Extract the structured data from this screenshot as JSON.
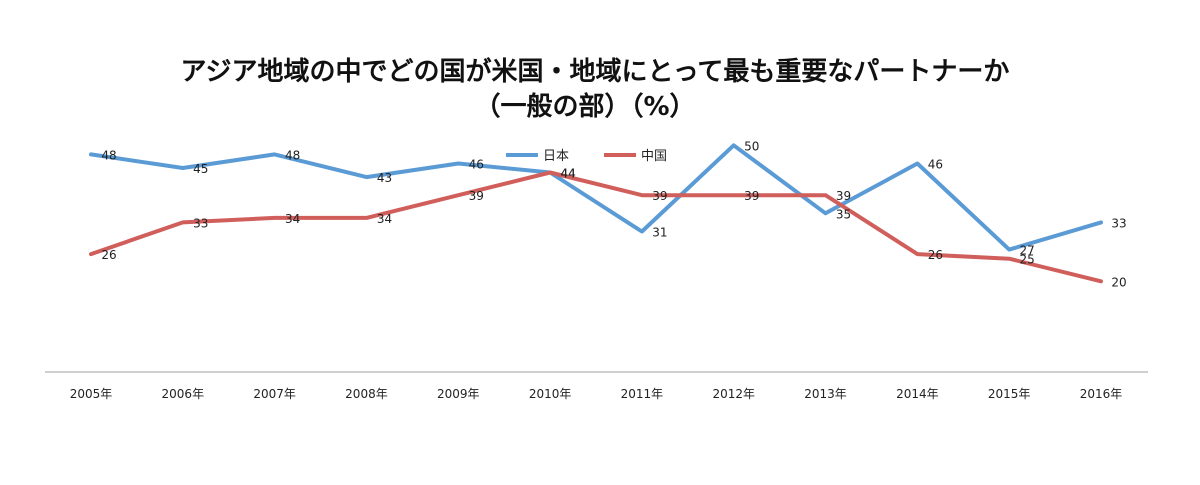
{
  "chart_data": {
    "type": "line",
    "title": "アジア地域の中でどの国が米国・地域にとって最も重要なパートナーか",
    "subtitle": "（一般の部）（%）",
    "categories": [
      "2005年",
      "2006年",
      "2007年",
      "2008年",
      "2009年",
      "2010年",
      "2011年",
      "2012年",
      "2013年",
      "2014年",
      "2015年",
      "2016年"
    ],
    "series": [
      {
        "name": "日本",
        "color": "#5b9bd5",
        "values": [
          48,
          45,
          48,
          43,
          46,
          44,
          31,
          50,
          35,
          46,
          27,
          33
        ]
      },
      {
        "name": "中国",
        "color": "#d05f5c",
        "values": [
          26,
          33,
          34,
          34,
          39,
          44,
          39,
          39,
          39,
          26,
          25,
          20
        ]
      }
    ],
    "ylim": [
      0,
      60
    ],
    "grid": false,
    "legend_position": "top-center",
    "axis_color": "#bfbfbf"
  }
}
